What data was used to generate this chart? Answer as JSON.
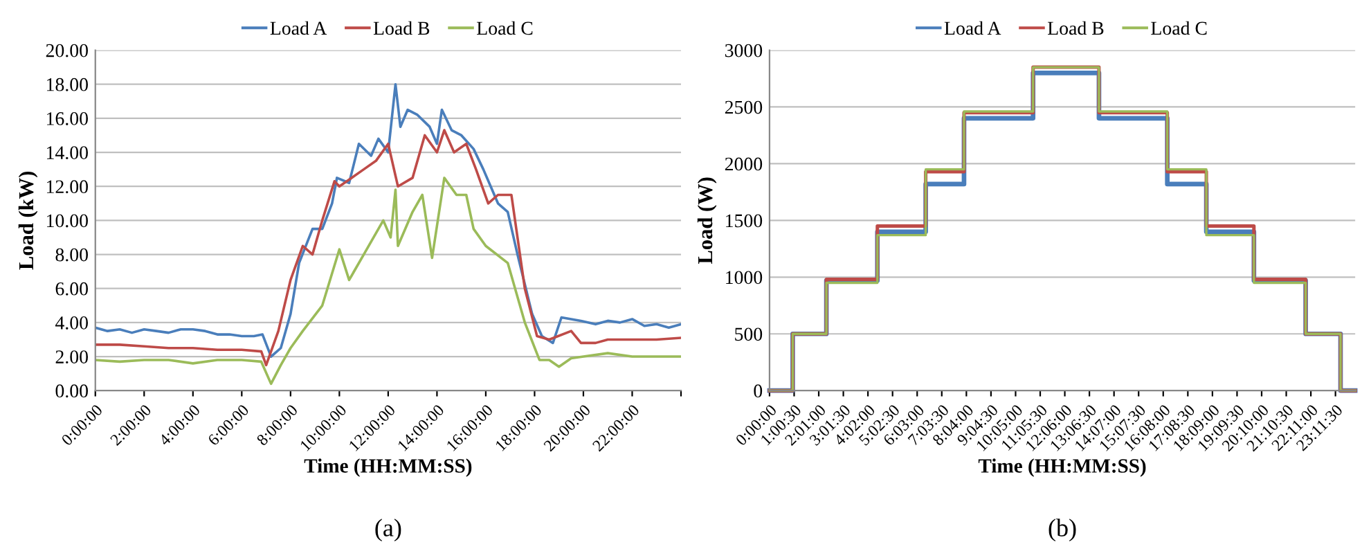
{
  "chart_data": [
    {
      "type": "line",
      "xlabel": "Time (HH:MM:SS)",
      "ylabel": "Load (kW)",
      "annotations": [
        "(a)"
      ],
      "legend": "top",
      "grid": "y",
      "line_style": "solid",
      "marker": "none",
      "xlim": [
        0,
        24
      ],
      "xticks": [
        {
          "value": 0,
          "label": "0:00:00"
        },
        {
          "value": 2,
          "label": "2:00:00"
        },
        {
          "value": 4,
          "label": "4:00:00"
        },
        {
          "value": 6,
          "label": "6:00:00"
        },
        {
          "value": 8,
          "label": "8:00:00"
        },
        {
          "value": 10,
          "label": "10:00:00"
        },
        {
          "value": 12,
          "label": "12:00:00"
        },
        {
          "value": 14,
          "label": "14:00:00"
        },
        {
          "value": 16,
          "label": "16:00:00"
        },
        {
          "value": 18,
          "label": "18:00:00"
        },
        {
          "value": 20,
          "label": "20:00:00"
        },
        {
          "value": 22,
          "label": "22:00:00"
        },
        {
          "value": 24,
          "label": null
        }
      ],
      "ylim": [
        0,
        20
      ],
      "yticks": [
        {
          "value": 0,
          "label": "0.00"
        },
        {
          "value": 2,
          "label": "2.00"
        },
        {
          "value": 4,
          "label": "4.00"
        },
        {
          "value": 6,
          "label": "6.00"
        },
        {
          "value": 8,
          "label": "8.00"
        },
        {
          "value": 10,
          "label": "10.00"
        },
        {
          "value": 12,
          "label": "12.00"
        },
        {
          "value": 14,
          "label": "14.00"
        },
        {
          "value": 16,
          "label": "16.00"
        },
        {
          "value": 18,
          "label": "18.00"
        },
        {
          "value": 20,
          "label": "20.00"
        }
      ],
      "series": [
        {
          "name": "Load A",
          "color": "#4a7ebb",
          "x": [
            0,
            0.5,
            1,
            1.5,
            2,
            2.5,
            3,
            3.5,
            4,
            4.5,
            5,
            5.5,
            6,
            6.5,
            6.85,
            7.2,
            7.6,
            8.0,
            8.35,
            8.9,
            9.3,
            9.7,
            9.9,
            10.4,
            10.8,
            11.3,
            11.6,
            12.0,
            12.3,
            12.5,
            12.8,
            13.2,
            13.7,
            14.0,
            14.2,
            14.6,
            15.0,
            15.5,
            15.9,
            16.5,
            16.9,
            17.3,
            17.9,
            18.3,
            18.75,
            19.1,
            19.9,
            20.5,
            21,
            21.5,
            22,
            22.5,
            23,
            23.5,
            24
          ],
          "values": [
            3.7,
            3.5,
            3.6,
            3.4,
            3.6,
            3.5,
            3.4,
            3.6,
            3.6,
            3.5,
            3.3,
            3.3,
            3.2,
            3.2,
            3.3,
            2.0,
            2.5,
            4.5,
            7.5,
            9.5,
            9.5,
            11.0,
            12.5,
            12.2,
            14.5,
            13.8,
            14.8,
            14.0,
            18.0,
            15.5,
            16.5,
            16.2,
            15.5,
            14.5,
            16.5,
            15.3,
            15.0,
            14.2,
            13.0,
            11.0,
            10.5,
            8.0,
            4.5,
            3.2,
            2.8,
            4.3,
            4.1,
            3.9,
            4.1,
            4.0,
            4.2,
            3.8,
            3.9,
            3.7,
            3.9
          ]
        },
        {
          "name": "Load B",
          "color": "#be4b48",
          "x": [
            0,
            1,
            2,
            3,
            4,
            5,
            6,
            6.8,
            7.0,
            7.5,
            8.0,
            8.5,
            8.9,
            9.3,
            9.8,
            10.0,
            10.5,
            11.0,
            11.5,
            12.0,
            12.4,
            13.0,
            13.5,
            14.0,
            14.3,
            14.7,
            15.2,
            15.6,
            16.1,
            16.5,
            17.05,
            17.6,
            18.1,
            18.6,
            19.5,
            19.9,
            20.5,
            21,
            22,
            23,
            24
          ],
          "values": [
            2.7,
            2.7,
            2.6,
            2.5,
            2.5,
            2.4,
            2.4,
            2.3,
            1.5,
            3.5,
            6.5,
            8.5,
            8.0,
            10.0,
            12.3,
            12.0,
            12.5,
            13.0,
            13.5,
            14.5,
            12.0,
            12.5,
            15.0,
            14.0,
            15.3,
            14.0,
            14.5,
            13.0,
            11.0,
            11.5,
            11.5,
            6.0,
            3.2,
            3.0,
            3.5,
            2.8,
            2.8,
            3.0,
            3.0,
            3.0,
            3.1
          ]
        },
        {
          "name": "Load C",
          "color": "#9bbb59",
          "x": [
            0,
            1,
            2,
            3,
            4,
            5,
            6,
            6.8,
            7.2,
            7.6,
            8.0,
            8.5,
            9.3,
            10.0,
            10.4,
            11.0,
            11.8,
            12.1,
            12.3,
            12.4,
            13.0,
            13.4,
            13.8,
            14.3,
            14.8,
            15.2,
            15.5,
            16.0,
            16.9,
            17.6,
            18.2,
            18.6,
            19.0,
            19.5,
            20,
            21,
            22,
            23,
            24
          ],
          "values": [
            1.8,
            1.7,
            1.8,
            1.8,
            1.6,
            1.8,
            1.8,
            1.7,
            0.4,
            1.5,
            2.5,
            3.5,
            5.0,
            8.3,
            6.5,
            8.0,
            10.0,
            9.0,
            11.8,
            8.5,
            10.5,
            11.5,
            7.8,
            12.5,
            11.5,
            11.5,
            9.5,
            8.5,
            7.5,
            4.0,
            1.8,
            1.8,
            1.4,
            1.9,
            2.0,
            2.2,
            2.0,
            2.0,
            2.0
          ]
        }
      ]
    },
    {
      "type": "step",
      "xlabel": "Time (HH:MM:SS)",
      "ylabel": "Load (W)",
      "annotations": [
        "(b)"
      ],
      "legend": "top",
      "grid": "y",
      "line_style": "solid",
      "marker": "none",
      "xlim": [
        0,
        24
      ],
      "xticks": [
        {
          "value": 0,
          "label": "0:00:00"
        },
        {
          "value": 1.0083,
          "label": "1:00:30"
        },
        {
          "value": 2.0167,
          "label": "2:01:00"
        },
        {
          "value": 3.025,
          "label": "3:01:30"
        },
        {
          "value": 4.0333,
          "label": "4:02:00"
        },
        {
          "value": 5.0417,
          "label": "5:02:30"
        },
        {
          "value": 6.05,
          "label": "6:03:00"
        },
        {
          "value": 7.0583,
          "label": "7:03:30"
        },
        {
          "value": 8.0667,
          "label": "8:04:00"
        },
        {
          "value": 9.075,
          "label": "9:04:30"
        },
        {
          "value": 10.0833,
          "label": "10:05:00"
        },
        {
          "value": 11.0917,
          "label": "11:05:30"
        },
        {
          "value": 12.1,
          "label": "12:06:00"
        },
        {
          "value": 13.1083,
          "label": "13:06:30"
        },
        {
          "value": 14.1167,
          "label": "14:07:00"
        },
        {
          "value": 15.125,
          "label": "15:07:30"
        },
        {
          "value": 16.1333,
          "label": "16:08:00"
        },
        {
          "value": 17.1417,
          "label": "17:08:30"
        },
        {
          "value": 18.15,
          "label": "18:09:00"
        },
        {
          "value": 19.1583,
          "label": "19:09:30"
        },
        {
          "value": 20.1667,
          "label": "20:10:00"
        },
        {
          "value": 21.175,
          "label": "21:10:30"
        },
        {
          "value": 22.1833,
          "label": "22:11:00"
        },
        {
          "value": 23.1917,
          "label": "23:11:30"
        }
      ],
      "ylim": [
        0,
        3000
      ],
      "yticks": [
        0,
        500,
        1000,
        1500,
        2000,
        2500,
        3000
      ],
      "x": [
        0,
        0.95,
        2.33,
        4.42,
        6.4,
        7.97,
        10.8,
        13.5,
        16.3,
        17.9,
        19.85,
        21.97,
        23.4,
        24
      ],
      "series": [
        {
          "name": "Load A",
          "color": "#4a7ebb",
          "values": [
            0,
            500,
            970,
            1400,
            1820,
            2400,
            2800,
            2400,
            1820,
            1400,
            970,
            500,
            0,
            0
          ]
        },
        {
          "name": "Load B",
          "color": "#be4b48",
          "values": [
            0,
            500,
            980,
            1450,
            1930,
            2450,
            2850,
            2450,
            1930,
            1450,
            980,
            500,
            0,
            0
          ]
        },
        {
          "name": "Load C",
          "color": "#9bbb59",
          "values": [
            0,
            500,
            950,
            1370,
            1950,
            2460,
            2850,
            2460,
            1950,
            1370,
            950,
            500,
            0,
            0
          ]
        }
      ]
    }
  ]
}
